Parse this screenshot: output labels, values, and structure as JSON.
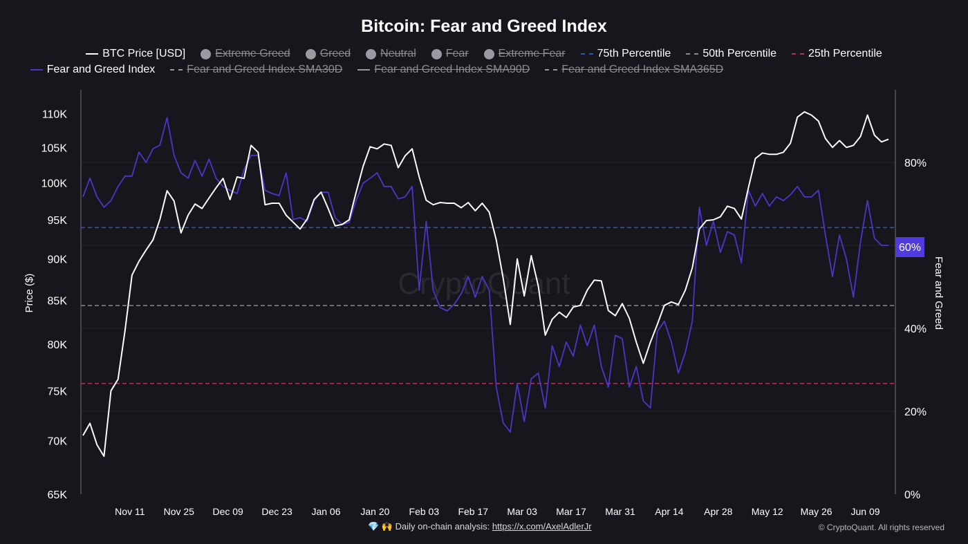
{
  "chart_data": {
    "type": "line",
    "title": "Bitcoin: Fear and Greed Index",
    "ylabel_left": "Price ($)",
    "ylabel_right": "Fear and Greed",
    "y_left_scale": "log",
    "y_left_range": [
      65000,
      113700
    ],
    "y_left_ticks": [
      {
        "value": 65000,
        "label": "65K"
      },
      {
        "value": 70000,
        "label": "70K"
      },
      {
        "value": 75000,
        "label": "75K"
      },
      {
        "value": 80000,
        "label": "80K"
      },
      {
        "value": 85000,
        "label": "85K"
      },
      {
        "value": 90000,
        "label": "90K"
      },
      {
        "value": 95000,
        "label": "95K"
      },
      {
        "value": 100000,
        "label": "100K"
      },
      {
        "value": 105000,
        "label": "105K"
      },
      {
        "value": 110000,
        "label": "110K"
      }
    ],
    "y_right_range": [
      0,
      97.5
    ],
    "y_right_ticks": [
      {
        "value": 0,
        "label": "0%"
      },
      {
        "value": 20,
        "label": "20%"
      },
      {
        "value": 40,
        "label": "40%"
      },
      {
        "value": 80,
        "label": "80%"
      }
    ],
    "x_range": [
      "2024-10-29",
      "2025-06-16"
    ],
    "x_ticks": [
      {
        "date": "2024-11-11",
        "label": "Nov 11"
      },
      {
        "date": "2024-11-25",
        "label": "Nov 25"
      },
      {
        "date": "2024-12-09",
        "label": "Dec 09"
      },
      {
        "date": "2024-12-23",
        "label": "Dec 23"
      },
      {
        "date": "2025-01-06",
        "label": "Jan 06"
      },
      {
        "date": "2025-01-20",
        "label": "Jan 20"
      },
      {
        "date": "2025-02-03",
        "label": "Feb 03"
      },
      {
        "date": "2025-02-17",
        "label": "Feb 17"
      },
      {
        "date": "2025-03-03",
        "label": "Mar 03"
      },
      {
        "date": "2025-03-17",
        "label": "Mar 17"
      },
      {
        "date": "2025-03-31",
        "label": "Mar 31"
      },
      {
        "date": "2025-04-14",
        "label": "Apr 14"
      },
      {
        "date": "2025-04-28",
        "label": "Apr 28"
      },
      {
        "date": "2025-05-12",
        "label": "May 12"
      },
      {
        "date": "2025-05-26",
        "label": "May 26"
      },
      {
        "date": "2025-06-09",
        "label": "Jun 09"
      }
    ],
    "grid": true,
    "legend_position": "top",
    "current_value_label": "60%",
    "dates": [
      "2024-10-29",
      "2024-10-31",
      "2024-11-02",
      "2024-11-04",
      "2024-11-06",
      "2024-11-08",
      "2024-11-10",
      "2024-11-12",
      "2024-11-14",
      "2024-11-16",
      "2024-11-18",
      "2024-11-20",
      "2024-11-22",
      "2024-11-24",
      "2024-11-26",
      "2024-11-28",
      "2024-11-30",
      "2024-12-02",
      "2024-12-04",
      "2024-12-06",
      "2024-12-08",
      "2024-12-10",
      "2024-12-12",
      "2024-12-14",
      "2024-12-16",
      "2024-12-18",
      "2024-12-20",
      "2024-12-22",
      "2024-12-24",
      "2024-12-26",
      "2024-12-28",
      "2024-12-30",
      "2025-01-01",
      "2025-01-03",
      "2025-01-05",
      "2025-01-07",
      "2025-01-09",
      "2025-01-11",
      "2025-01-13",
      "2025-01-15",
      "2025-01-17",
      "2025-01-19",
      "2025-01-21",
      "2025-01-23",
      "2025-01-25",
      "2025-01-27",
      "2025-01-29",
      "2025-01-31",
      "2025-02-02",
      "2025-02-04",
      "2025-02-06",
      "2025-02-08",
      "2025-02-10",
      "2025-02-12",
      "2025-02-14",
      "2025-02-16",
      "2025-02-18",
      "2025-02-20",
      "2025-02-22",
      "2025-02-24",
      "2025-02-26",
      "2025-02-28",
      "2025-03-02",
      "2025-03-04",
      "2025-03-06",
      "2025-03-08",
      "2025-03-10",
      "2025-03-12",
      "2025-03-14",
      "2025-03-16",
      "2025-03-18",
      "2025-03-20",
      "2025-03-22",
      "2025-03-24",
      "2025-03-26",
      "2025-03-28",
      "2025-03-30",
      "2025-04-01",
      "2025-04-03",
      "2025-04-05",
      "2025-04-07",
      "2025-04-09",
      "2025-04-11",
      "2025-04-13",
      "2025-04-15",
      "2025-04-17",
      "2025-04-19",
      "2025-04-21",
      "2025-04-23",
      "2025-04-25",
      "2025-04-27",
      "2025-04-29",
      "2025-05-01",
      "2025-05-03",
      "2025-05-05",
      "2025-05-07",
      "2025-05-09",
      "2025-05-11",
      "2025-05-13",
      "2025-05-15",
      "2025-05-17",
      "2025-05-19",
      "2025-05-21",
      "2025-05-23",
      "2025-05-25",
      "2025-05-27",
      "2025-05-29",
      "2025-05-31",
      "2025-06-02",
      "2025-06-04",
      "2025-06-06",
      "2025-06-08",
      "2025-06-10",
      "2025-06-12",
      "2025-06-14",
      "2025-06-16"
    ],
    "series": [
      {
        "name": "BTC Price [USD]",
        "axis": "left",
        "color": "#ffffff",
        "values": [
          70500,
          71700,
          69600,
          68500,
          75000,
          76200,
          81500,
          88000,
          89700,
          91100,
          92400,
          95100,
          98900,
          97500,
          93300,
          95600,
          97100,
          96500,
          97900,
          99300,
          100600,
          97700,
          100800,
          100600,
          105300,
          104300,
          97000,
          97200,
          97200,
          95600,
          94700,
          93800,
          95100,
          97700,
          98700,
          96500,
          94200,
          94400,
          95000,
          98700,
          102300,
          105100,
          104800,
          105500,
          105300,
          102100,
          103800,
          104800,
          100800,
          97600,
          97000,
          97300,
          97200,
          97200,
          96600,
          97300,
          96200,
          97200,
          96000,
          92400,
          87600,
          82200,
          90000,
          85500,
          90400,
          86700,
          81000,
          82800,
          83600,
          83000,
          84200,
          84400,
          86200,
          87400,
          87300,
          83800,
          83200,
          84600,
          82900,
          80200,
          77900,
          80200,
          82200,
          84400,
          84800,
          84500,
          86200,
          88900,
          93800,
          94900,
          95000,
          95400,
          96800,
          96500,
          95100,
          99300,
          103400,
          104200,
          104000,
          104000,
          104300,
          105600,
          109500,
          110300,
          109800,
          108900,
          106300,
          105000,
          106000,
          105000,
          105300,
          106600,
          109800,
          106800,
          105800,
          106200
        ]
      },
      {
        "name": "Fear and Greed Index",
        "axis": "right",
        "color": "#4b36c9",
        "values": [
          71.7,
          76.2,
          71.7,
          69.2,
          70.8,
          74.2,
          76.7,
          76.7,
          82.5,
          80.0,
          83.3,
          84.2,
          90.8,
          81.7,
          77.5,
          76.2,
          80.5,
          76.7,
          80.8,
          76.2,
          74.2,
          73.3,
          72.5,
          78.3,
          81.7,
          81.7,
          73.3,
          72.5,
          72.0,
          77.5,
          66.2,
          66.7,
          65.8,
          70.8,
          72.8,
          72.8,
          66.7,
          65.0,
          65.5,
          70.8,
          75.0,
          76.2,
          77.5,
          74.2,
          74.2,
          71.2,
          71.7,
          74.2,
          49.2,
          65.8,
          49.2,
          45.0,
          44.2,
          45.8,
          48.3,
          52.5,
          47.5,
          52.5,
          49.2,
          25.8,
          17.2,
          15.0,
          26.7,
          17.5,
          27.8,
          29.2,
          20.8,
          35.8,
          30.8,
          36.7,
          33.3,
          40.8,
          35.8,
          40.8,
          30.8,
          25.8,
          38.3,
          37.5,
          25.8,
          30.8,
          22.5,
          20.8,
          39.2,
          41.7,
          36.7,
          29.2,
          34.2,
          41.7,
          69.2,
          60.0,
          65.8,
          58.3,
          63.3,
          62.5,
          55.8,
          73.3,
          69.5,
          72.5,
          69.5,
          71.7,
          70.8,
          72.2,
          74.2,
          71.7,
          71.7,
          73.3,
          62.5,
          52.5,
          62.5,
          56.7,
          47.5,
          60.8,
          70.8,
          61.7,
          60.0,
          60.0
        ]
      }
    ],
    "reference_lines": [
      {
        "name": "75th Percentile",
        "axis": "right",
        "value": 64.3,
        "color": "#2e55b8"
      },
      {
        "name": "50th Percentile",
        "axis": "right",
        "value": 45.5,
        "color": "#8a8a90"
      },
      {
        "name": "25th Percentile",
        "axis": "right",
        "value": 26.7,
        "color": "#b0335f"
      }
    ]
  },
  "legend": {
    "row1": [
      {
        "label": "BTC Price [USD]",
        "swatch": "line",
        "color": "#ffffff",
        "visible": true
      },
      {
        "label": "Extreme Greed",
        "swatch": "dot",
        "color": "#9b9aa2",
        "visible": false
      },
      {
        "label": "Greed",
        "swatch": "dot",
        "color": "#9b9aa2",
        "visible": false
      },
      {
        "label": "Neutral",
        "swatch": "dot",
        "color": "#9b9aa2",
        "visible": false
      },
      {
        "label": "Fear",
        "swatch": "dot",
        "color": "#9b9aa2",
        "visible": false
      },
      {
        "label": "Extreme Fear",
        "swatch": "dot",
        "color": "#9b9aa2",
        "visible": false
      },
      {
        "label": "75th Percentile",
        "swatch": "dash",
        "color": "#2e55b8",
        "visible": true
      },
      {
        "label": "50th Percentile",
        "swatch": "dash",
        "color": "#8a8a90",
        "visible": true
      },
      {
        "label": "25th Percentile",
        "swatch": "dash",
        "color": "#b0335f",
        "visible": true
      }
    ],
    "row2": [
      {
        "label": "Fear and Greed Index",
        "swatch": "line",
        "color": "#4b36c9",
        "visible": true
      },
      {
        "label": "Fear and Greed Index SMA30D",
        "swatch": "dash",
        "color": "#9b9aa2",
        "visible": false
      },
      {
        "label": "Fear and Greed Index SMA90D",
        "swatch": "line",
        "color": "#9b9aa2",
        "visible": false
      },
      {
        "label": "Fear and Greed Index SMA365D",
        "swatch": "dash",
        "color": "#9b9aa2",
        "visible": false
      }
    ]
  },
  "watermark": "CryptoQuant",
  "footer": {
    "emoji": "💎 🙌",
    "text": "Daily on-chain analysis:",
    "link": "https://x.com/AxelAdlerJr",
    "copyright": "© CryptoQuant. All rights reserved"
  }
}
